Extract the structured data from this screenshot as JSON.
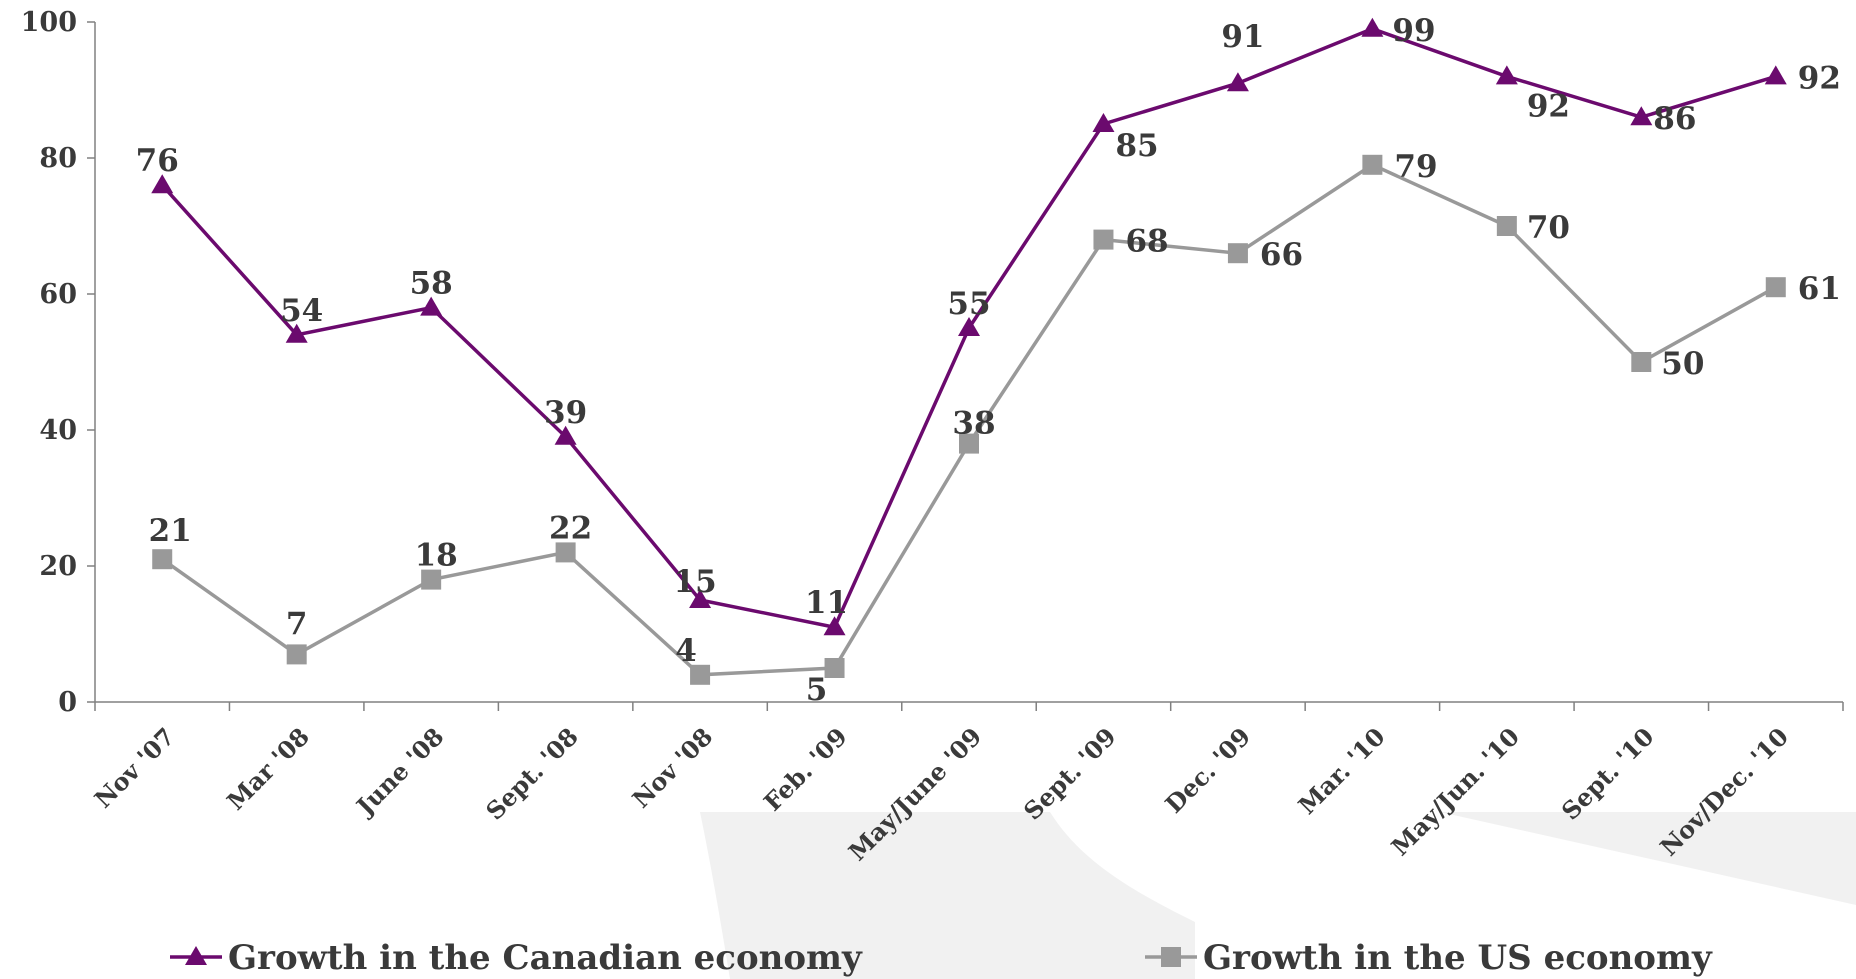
{
  "chart_data": {
    "type": "line",
    "title": "",
    "xlabel": "",
    "ylabel": "",
    "ylim": [
      0,
      100
    ],
    "yticks": [
      0,
      20,
      40,
      60,
      80,
      100
    ],
    "grid": false,
    "legend_position": "bottom",
    "categories": [
      "Nov '07",
      "Mar '08",
      "June '08",
      "Sept. '08",
      "Nov '08",
      "Feb. '09",
      "May/June '09",
      "Sept. '09",
      "Dec. '09",
      "Mar. '10",
      "May/Jun. '10",
      "Sept. '10",
      "Nov/Dec. '10"
    ],
    "series": [
      {
        "name": "Growth in the Canadian economy",
        "marker": "triangle",
        "color": "#6b0a6e",
        "values": [
          76,
          54,
          58,
          39,
          15,
          11,
          55,
          85,
          91,
          99,
          92,
          86,
          92
        ]
      },
      {
        "name": "Growth in the US economy",
        "marker": "square",
        "color": "#999999",
        "values": [
          21,
          7,
          18,
          22,
          4,
          5,
          38,
          68,
          66,
          79,
          70,
          50,
          61
        ]
      }
    ]
  }
}
